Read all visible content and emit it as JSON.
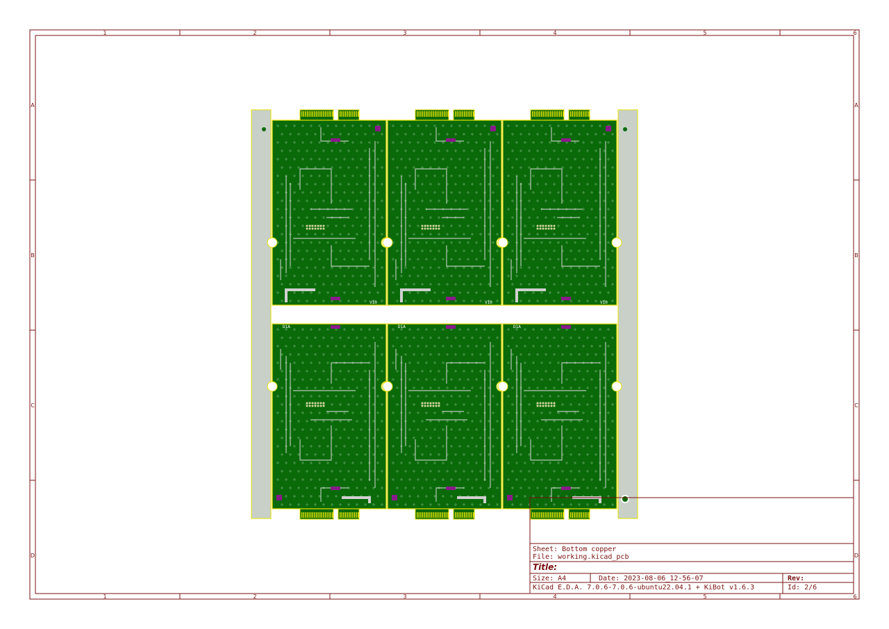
{
  "sheet": {
    "column_labels": [
      "1",
      "2",
      "3",
      "4",
      "5",
      "6"
    ],
    "row_labels": [
      "A",
      "B",
      "C",
      "D"
    ],
    "border_color": "#7a1010"
  },
  "title_block": {
    "sheet_line": "Sheet: Bottom copper",
    "file_line": "File: working.kicad_pcb",
    "title_label": "Title:",
    "size_line": "Size: A4",
    "date_line": "Date: 2023-08-06_12-56-07",
    "rev_label": "Rev:",
    "tool_line": "KiCad E.D.A. 7.0.6-7.0.6-ubuntu22.04.1 + KiBot v1.6.3",
    "id_line": "Id: 2/6"
  },
  "pcb": {
    "copper_color": "#0a6a0a",
    "outline_color": "#e8e000",
    "rail_color": "#c8d0c8",
    "pad_color": "#8a1a8a",
    "via_color": "#d8d8a0",
    "board_labels": {
      "top": "V10",
      "bottom": "D1A"
    }
  }
}
